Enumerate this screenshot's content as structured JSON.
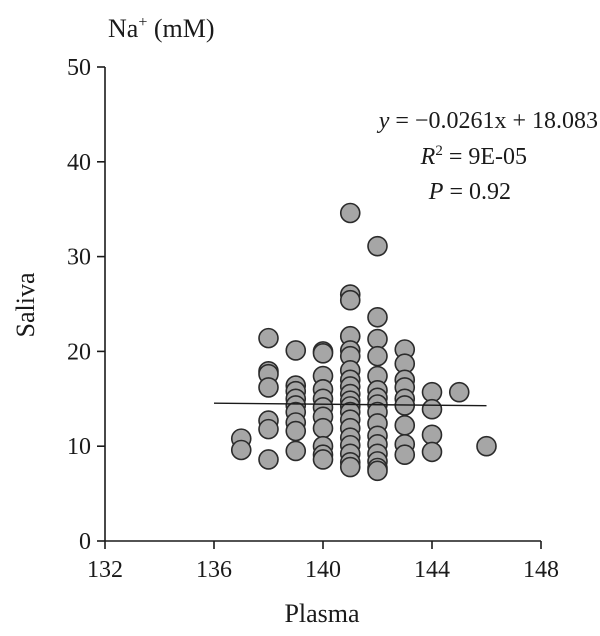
{
  "chart_data": {
    "type": "scatter",
    "title": "Na+ (mM)",
    "title_main": "Na",
    "title_sup": "+",
    "title_unit": " (mM)",
    "xlabel": "Plasma",
    "ylabel": "Saliva",
    "xlim": [
      132,
      148
    ],
    "ylim": [
      0,
      50
    ],
    "xticks": [
      132,
      136,
      140,
      144,
      148
    ],
    "yticks": [
      0,
      10,
      20,
      30,
      40,
      50
    ],
    "grid": false,
    "annotation": {
      "equation_y": "y",
      "equation_rest": " = −0.0261x + 18.083",
      "r2_label": "R",
      "r2_sup": "2",
      "r2_value": " = 9E-05",
      "p_label": "P",
      "p_value": " = 0.92"
    },
    "regression": {
      "slope": -0.0261,
      "intercept": 18.083,
      "x_range": [
        136,
        146
      ]
    },
    "series": [
      {
        "points": [
          [
            137,
            10.8
          ],
          [
            137,
            9.6
          ],
          [
            138,
            21.4
          ],
          [
            138,
            17.9
          ],
          [
            138,
            17.6
          ],
          [
            138,
            16.2
          ],
          [
            138,
            12.7
          ],
          [
            138,
            11.8
          ],
          [
            138,
            8.6
          ],
          [
            139,
            20.1
          ],
          [
            139,
            16.4
          ],
          [
            139,
            15.8
          ],
          [
            139,
            15.0
          ],
          [
            139,
            14.3
          ],
          [
            139,
            13.6
          ],
          [
            139,
            12.5
          ],
          [
            139,
            11.6
          ],
          [
            139,
            9.5
          ],
          [
            140,
            20.0
          ],
          [
            140,
            19.8
          ],
          [
            140,
            17.4
          ],
          [
            140,
            16.0
          ],
          [
            140,
            15.0
          ],
          [
            140,
            14.1
          ],
          [
            140,
            13.1
          ],
          [
            140,
            11.9
          ],
          [
            140,
            10.0
          ],
          [
            140,
            9.1
          ],
          [
            140,
            8.6
          ],
          [
            141,
            34.6
          ],
          [
            141,
            26.0
          ],
          [
            141,
            25.4
          ],
          [
            141,
            21.6
          ],
          [
            141,
            20.1
          ],
          [
            141,
            19.5
          ],
          [
            141,
            18.0
          ],
          [
            141,
            17.0
          ],
          [
            141,
            16.3
          ],
          [
            141,
            15.5
          ],
          [
            141,
            14.8
          ],
          [
            141,
            14.2
          ],
          [
            141,
            13.6
          ],
          [
            141,
            12.8
          ],
          [
            141,
            11.9
          ],
          [
            141,
            10.9
          ],
          [
            141,
            10.1
          ],
          [
            141,
            9.2
          ],
          [
            141,
            8.3
          ],
          [
            141,
            7.8
          ],
          [
            142,
            31.1
          ],
          [
            142,
            23.6
          ],
          [
            142,
            21.3
          ],
          [
            142,
            19.5
          ],
          [
            142,
            17.4
          ],
          [
            142,
            15.9
          ],
          [
            142,
            15.1
          ],
          [
            142,
            14.4
          ],
          [
            142,
            13.6
          ],
          [
            142,
            12.4
          ],
          [
            142,
            11.1
          ],
          [
            142,
            10.2
          ],
          [
            142,
            9.2
          ],
          [
            142,
            8.4
          ],
          [
            142,
            7.7
          ],
          [
            142,
            7.4
          ],
          [
            143,
            20.2
          ],
          [
            143,
            18.7
          ],
          [
            143,
            17.0
          ],
          [
            143,
            16.2
          ],
          [
            143,
            15.0
          ],
          [
            143,
            14.3
          ],
          [
            143,
            12.2
          ],
          [
            143,
            10.2
          ],
          [
            143,
            9.1
          ],
          [
            144,
            15.7
          ],
          [
            144,
            13.9
          ],
          [
            144,
            11.2
          ],
          [
            144,
            9.4
          ],
          [
            145,
            15.7
          ],
          [
            146,
            10.0
          ]
        ]
      }
    ]
  }
}
